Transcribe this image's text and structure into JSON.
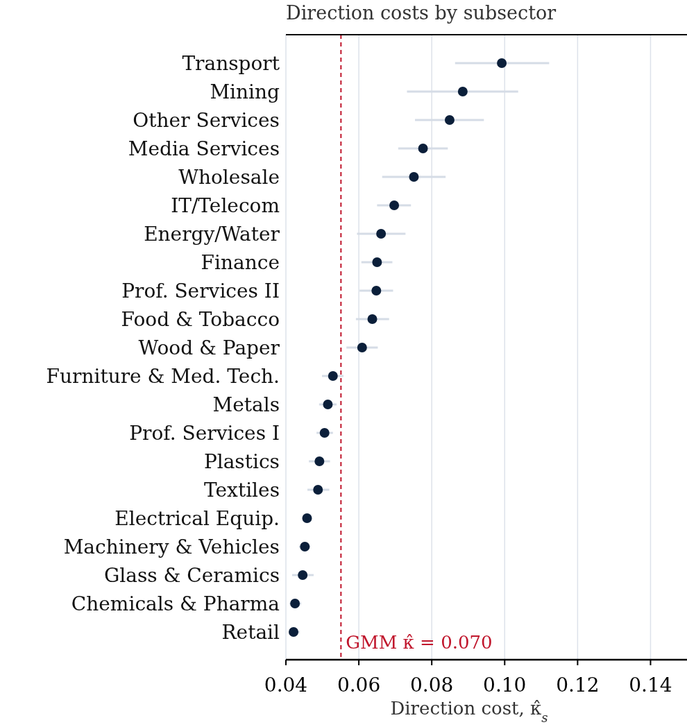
{
  "chart_data": {
    "type": "scatter",
    "orientation": "horizontal",
    "title": "Direction costs by subsector",
    "xlabel": "Direction cost, κ̂$_{s}$",
    "categories": [
      "Transport",
      "Mining",
      "Other Services",
      "Media Services",
      "Wholesale",
      "IT/Telecom",
      "Energy/Water",
      "Finance",
      "Prof. Services II",
      "Food & Tobacco",
      "Wood & Paper",
      "Furniture & Med. Tech.",
      "Metals",
      "Prof. Services I",
      "Plastics",
      "Textiles",
      "Electrical Equip.",
      "Machinery & Vehicles",
      "Glass & Ceramics",
      "Chemicals & Pharma",
      "Retail"
    ],
    "series": [
      {
        "color": "#0b1f3a",
        "values": [
          0.0992,
          0.0885,
          0.0849,
          0.0776,
          0.0751,
          0.0697,
          0.0661,
          0.065,
          0.0648,
          0.0637,
          0.0609,
          0.0529,
          0.0515,
          0.0506,
          0.0492,
          0.0488,
          0.0458,
          0.0452,
          0.0446,
          0.0425,
          0.0421
        ],
        "errors": [
          [
            0.0864,
            0.1122
          ],
          [
            0.0732,
            0.1037
          ],
          [
            0.0754,
            0.0943
          ],
          [
            0.0708,
            0.0844
          ],
          [
            0.0664,
            0.0838
          ],
          [
            0.065,
            0.0743
          ],
          [
            0.0595,
            0.0728
          ],
          [
            0.0607,
            0.0692
          ],
          [
            0.0602,
            0.0694
          ],
          [
            0.0592,
            0.0683
          ],
          [
            0.0566,
            0.0652
          ],
          [
            0.0499,
            0.0558
          ],
          [
            0.0491,
            0.0539
          ],
          [
            0.0484,
            0.0529
          ],
          [
            0.0463,
            0.0521
          ],
          [
            0.0459,
            0.0519
          ],
          [
            0.0445,
            0.0471
          ],
          [
            0.0436,
            0.0467
          ],
          [
            0.0417,
            0.0476
          ],
          [
            0.041,
            0.0442
          ],
          [
            0.041,
            0.0438
          ]
        ]
      }
    ],
    "xlim": [
      0.04,
      0.15
    ],
    "xticks": [
      0.04,
      0.06,
      0.08,
      {
        "value": 0.1,
        "label": "0.10"
      },
      0.12,
      0.14
    ],
    "ref_lines": [
      {
        "axis": "x",
        "value": 0.0551,
        "color": "#c0162c",
        "line_style": "dashed"
      }
    ],
    "annotations": [
      "GMM κ̂ = 0.070"
    ],
    "grid": "x",
    "marker": "circle"
  }
}
